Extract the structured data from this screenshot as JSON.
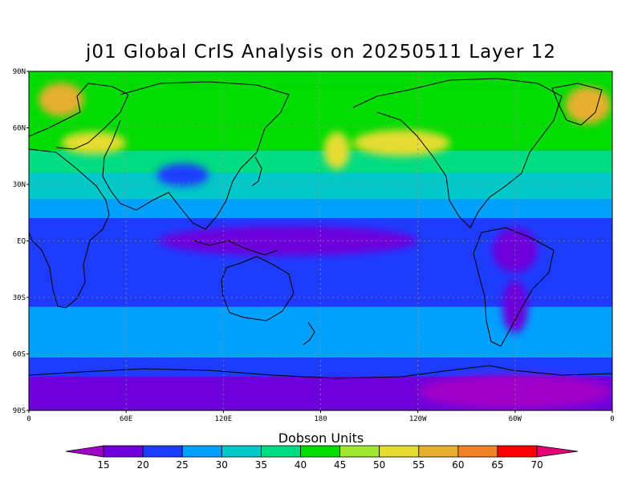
{
  "title": "j01 Global CrIS Analysis on 20250511 Layer 12",
  "units_label": "Dobson Units",
  "map": {
    "projection": "latlon",
    "lon_range": [
      0,
      360
    ],
    "lat_range": [
      -90,
      90
    ],
    "lat_ticks": [
      {
        "value": 90,
        "label": "90N"
      },
      {
        "value": 60,
        "label": "60N"
      },
      {
        "value": 30,
        "label": "30N"
      },
      {
        "value": 0,
        "label": "EQ"
      },
      {
        "value": -30,
        "label": "30S"
      },
      {
        "value": -60,
        "label": "60S"
      },
      {
        "value": -90,
        "label": "90S"
      }
    ],
    "lon_ticks": [
      {
        "value": 0,
        "label": "0"
      },
      {
        "value": 60,
        "label": "60E"
      },
      {
        "value": 120,
        "label": "120E"
      },
      {
        "value": 180,
        "label": "180"
      },
      {
        "value": 240,
        "label": "120W"
      },
      {
        "value": 300,
        "label": "60W"
      },
      {
        "value": 360,
        "label": "0"
      }
    ],
    "grid": "dotted"
  },
  "colorbar": {
    "levels": [
      15,
      20,
      25,
      30,
      35,
      40,
      45,
      50,
      55,
      60,
      65,
      70
    ],
    "colors": [
      "#a000c8",
      "#6e00dc",
      "#1e3cff",
      "#00a0ff",
      "#00c8c8",
      "#00dc82",
      "#00dc00",
      "#a0e632",
      "#e6dc32",
      "#e6af2d",
      "#f08228",
      "#fa0000",
      "#e60078"
    ]
  },
  "field_bands": [
    {
      "lat_max": 90,
      "lat_min": 83,
      "value": 42
    },
    {
      "lat_max": 83,
      "lat_min": 48,
      "value": 44
    },
    {
      "lat_max": 48,
      "lat_min": 36,
      "value": 36
    },
    {
      "lat_max": 36,
      "lat_min": 22,
      "value": 31
    },
    {
      "lat_max": 22,
      "lat_min": 12,
      "value": 26
    },
    {
      "lat_max": 12,
      "lat_min": -35,
      "value": 21
    },
    {
      "lat_max": -35,
      "lat_min": -62,
      "value": 27
    },
    {
      "lat_max": -62,
      "lat_min": -72,
      "value": 22
    },
    {
      "lat_max": -72,
      "lat_min": -90,
      "value": 17
    }
  ],
  "field_patches": [
    {
      "lon": 20,
      "lat": 75,
      "dlon": 14,
      "dlat": 9,
      "value": 57
    },
    {
      "lon": 345,
      "lat": 72,
      "dlon": 14,
      "dlat": 10,
      "value": 57
    },
    {
      "lon": 40,
      "lat": 52,
      "dlon": 20,
      "dlat": 6,
      "value": 52
    },
    {
      "lon": 230,
      "lat": 52,
      "dlon": 30,
      "dlat": 7,
      "value": 52
    },
    {
      "lon": 190,
      "lat": 48,
      "dlon": 8,
      "dlat": 10,
      "value": 52
    },
    {
      "lon": 90,
      "lat": 35,
      "dlon": 10,
      "dlat": 4,
      "value": 17
    },
    {
      "lon": 95,
      "lat": 35,
      "dlon": 16,
      "dlat": 6,
      "value": 22
    },
    {
      "lon": 160,
      "lat": 0,
      "dlon": 80,
      "dlat": 8,
      "value": 17
    },
    {
      "lon": 300,
      "lat": -5,
      "dlon": 14,
      "dlat": 12,
      "value": 17
    },
    {
      "lon": 300,
      "lat": -35,
      "dlon": 8,
      "dlat": 14,
      "value": 17
    },
    {
      "lon": 300,
      "lat": -80,
      "dlon": 60,
      "dlat": 9,
      "value": 12
    }
  ]
}
